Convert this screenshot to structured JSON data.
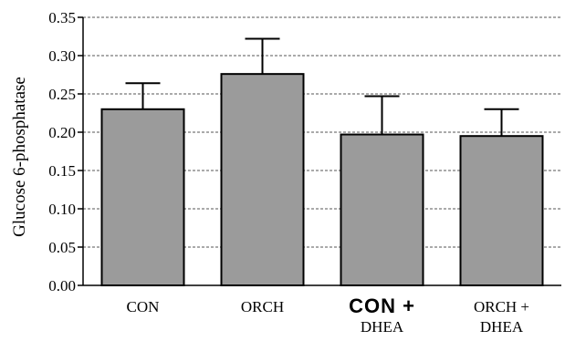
{
  "chart_data": {
    "type": "bar",
    "categories": [
      "CON",
      "ORCH",
      "CON +\nDHEA",
      "ORCH +\nDHEA"
    ],
    "values": [
      0.23,
      0.276,
      0.197,
      0.195
    ],
    "errors": [
      0.034,
      0.046,
      0.05,
      0.035
    ],
    "ylabel": "Glucose 6-phosphatase",
    "xlabel": "",
    "ylim": [
      0,
      0.35
    ],
    "yticks": [
      "0.00",
      "0.05",
      "0.10",
      "0.15",
      "0.20",
      "0.25",
      "0.30",
      "0.35"
    ],
    "grid": true,
    "colors": {
      "bar": "#9b9b9b",
      "stroke": "#000000",
      "grid": "#555555"
    }
  }
}
